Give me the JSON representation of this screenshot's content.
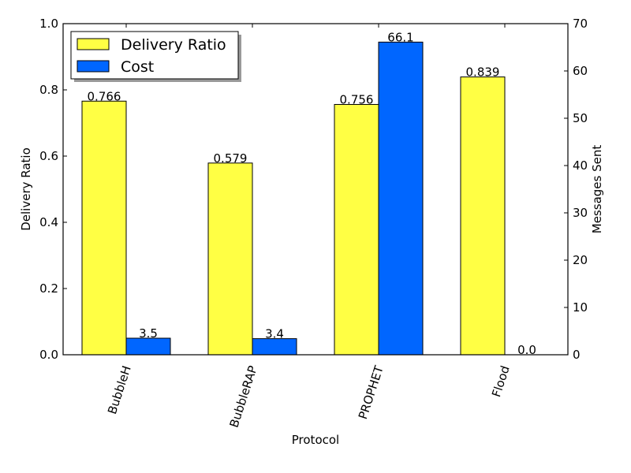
{
  "chart_data": {
    "type": "bar",
    "categories": [
      "BubbleH",
      "BubbleRAP",
      "PROPHET",
      "Flood"
    ],
    "series": [
      {
        "name": "Delivery Ratio",
        "axis": "left",
        "color": "#ffff44",
        "values": [
          0.766,
          0.579,
          0.756,
          0.839
        ],
        "value_labels": [
          "0.766",
          "0.579",
          "0.756",
          "0.839"
        ]
      },
      {
        "name": "Cost",
        "axis": "right",
        "color": "#0066ff",
        "values": [
          3.5,
          3.4,
          66.1,
          0.0
        ],
        "value_labels": [
          "3.5",
          "3.4",
          "66.1",
          "0.0"
        ]
      }
    ],
    "xlabel": "Protocol",
    "ylabel": "Delivery Ratio",
    "y2label": "Messages Sent",
    "ylim": [
      0,
      1.0
    ],
    "y2lim": [
      0,
      70
    ],
    "yticks": [
      "0.0",
      "0.2",
      "0.4",
      "0.6",
      "0.8",
      "1.0"
    ],
    "y2ticks": [
      "0",
      "10",
      "20",
      "30",
      "40",
      "50",
      "60",
      "70"
    ],
    "grid": false,
    "legend": {
      "placement": "top-left",
      "shadow": true
    }
  }
}
